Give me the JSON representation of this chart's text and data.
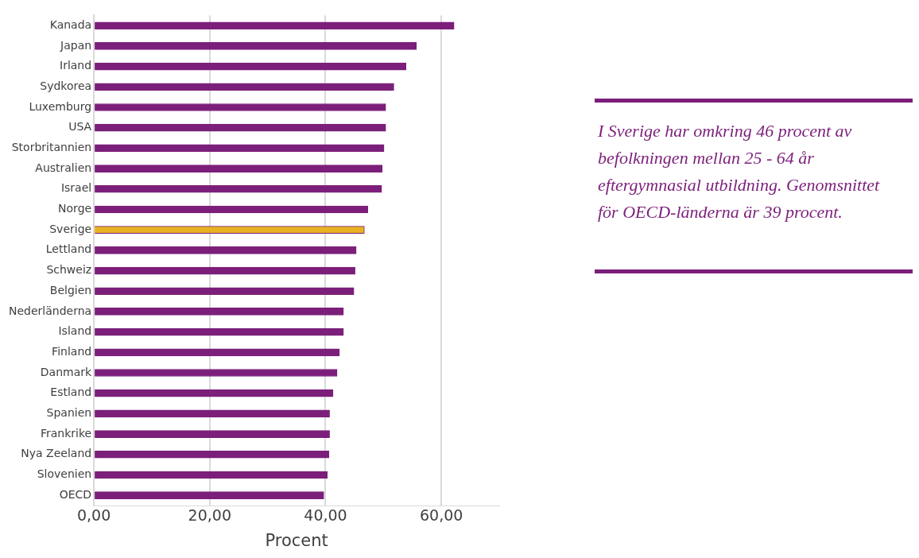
{
  "chart_data": {
    "type": "bar",
    "orientation": "horizontal",
    "categories": [
      "Kanada",
      "Japan",
      "Irland",
      "Sydkorea",
      "Luxemburg",
      "USA",
      "Storbritannien",
      "Australien",
      "Israel",
      "Norge",
      "Sverige",
      "Lettland",
      "Schweiz",
      "Belgien",
      "Nederländerna",
      "Island",
      "Finland",
      "Danmark",
      "Estland",
      "Spanien",
      "Frankrike",
      "Nya Zeeland",
      "Slovenien",
      "OECD"
    ],
    "values": [
      62.2,
      55.7,
      53.9,
      51.8,
      50.4,
      50.4,
      50.1,
      49.8,
      49.7,
      47.3,
      46.7,
      45.3,
      45.1,
      44.9,
      43.1,
      43.1,
      42.4,
      42.0,
      41.3,
      40.7,
      40.7,
      40.6,
      40.3,
      39.7
    ],
    "color": "#7b1f7a",
    "colors": [
      "#7b1f7a",
      "#7b1f7a",
      "#7b1f7a",
      "#7b1f7a",
      "#7b1f7a",
      "#7b1f7a",
      "#7b1f7a",
      "#7b1f7a",
      "#7b1f7a",
      "#7b1f7a",
      "#e8b222",
      "#7b1f7a",
      "#7b1f7a",
      "#7b1f7a",
      "#7b1f7a",
      "#7b1f7a",
      "#7b1f7a",
      "#7b1f7a",
      "#7b1f7a",
      "#7b1f7a",
      "#7b1f7a",
      "#7b1f7a",
      "#7b1f7a",
      "#7b1f7a"
    ],
    "xlabel": "Procent",
    "xlim": [
      0,
      70
    ],
    "xticks": [
      {
        "value": 0,
        "label": "0,00"
      },
      {
        "value": 20,
        "label": "20,00"
      },
      {
        "value": 40,
        "label": "40,00"
      },
      {
        "value": 60,
        "label": "60,00"
      }
    ],
    "grid": "x",
    "annotations": [
      "I Sverige har omkring 46 procent av befolkningen mellan 25 - 64 år eftergymnasial utbildning. Genomsnittet för OECD-länderna är 39 procent."
    ]
  }
}
